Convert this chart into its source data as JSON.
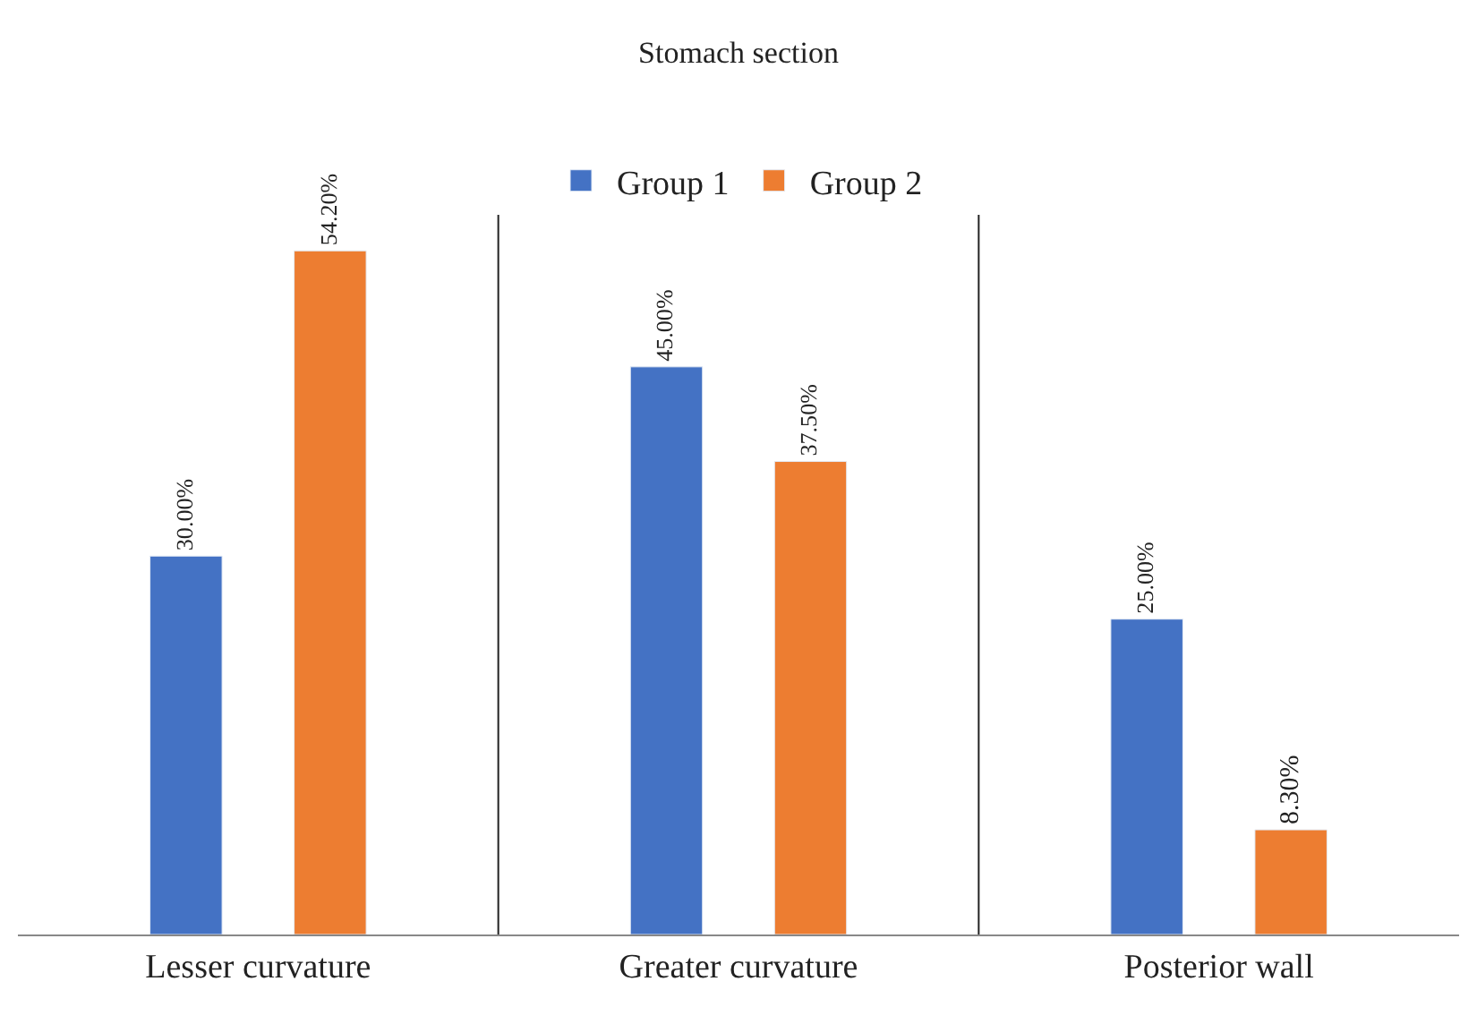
{
  "chart_data": {
    "type": "bar",
    "title": "Stomach section",
    "categories": [
      "Lesser curvature",
      "Greater curvature",
      "Posterior wall"
    ],
    "series": [
      {
        "name": "Group 1",
        "color": "#4472c4",
        "values": [
          30.0,
          45.0,
          25.0
        ],
        "value_labels": [
          "30.00%",
          "45.00%",
          "25.00%"
        ]
      },
      {
        "name": "Group 2",
        "color": "#ed7d31",
        "values": [
          54.2,
          37.5,
          8.3
        ],
        "value_labels": [
          "54.20%",
          "37.50%",
          "8.30%"
        ]
      }
    ],
    "grid": "x",
    "legend": "top"
  }
}
